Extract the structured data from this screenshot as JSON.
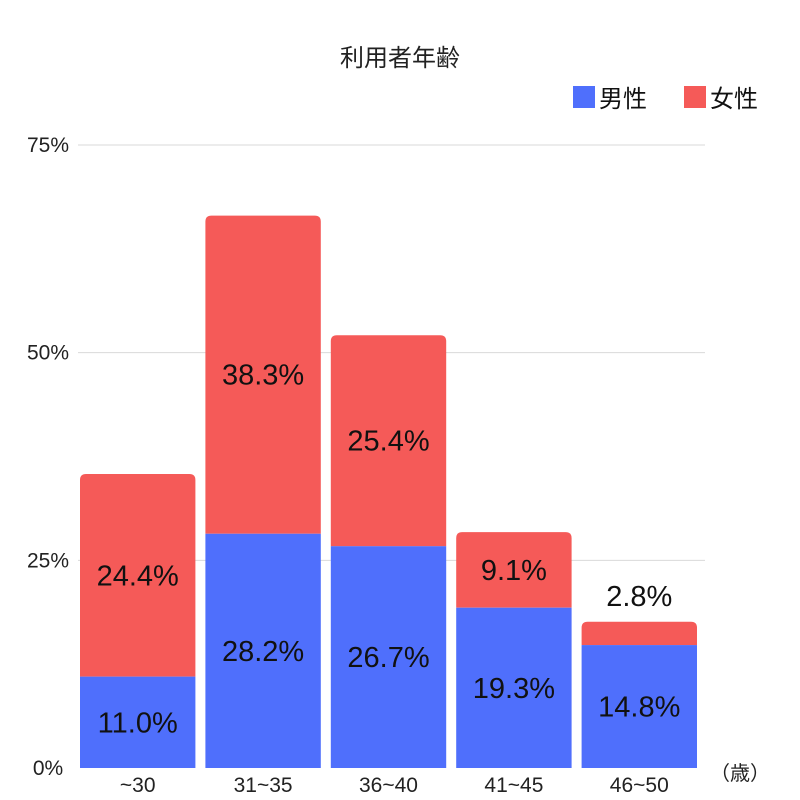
{
  "chart_data": {
    "type": "bar",
    "stacked": true,
    "title": "利用者年齢",
    "categories": [
      "~30",
      "31~35",
      "36~40",
      "41~45",
      "46~50"
    ],
    "series": [
      {
        "name": "男性",
        "color": "#4f6ffc",
        "values": [
          11.0,
          28.2,
          26.7,
          19.3,
          14.8
        ],
        "labels": [
          "11.0%",
          "28.2%",
          "26.7%",
          "19.3%",
          "14.8%"
        ]
      },
      {
        "name": "女性",
        "color": "#f55a58",
        "values": [
          24.4,
          38.3,
          25.4,
          9.1,
          2.8
        ],
        "labels": [
          "24.4%",
          "38.3%",
          "25.4%",
          "9.1%",
          "2.8%"
        ]
      }
    ],
    "ylim": [
      0,
      75
    ],
    "yticks": [
      0,
      25,
      50,
      75
    ],
    "ytick_labels": [
      "0%",
      "25%",
      "50%",
      "75%"
    ],
    "x_unit_label": "（歳）",
    "grid": true,
    "legend_position": "top-right"
  }
}
